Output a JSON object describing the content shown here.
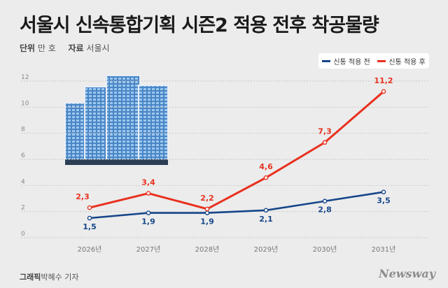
{
  "title": "서울시 신속통합기획 시즌2 적용 전후 착공물량",
  "meta": {
    "unit_label": "단위",
    "unit_value": "만 호",
    "source_label": "자료",
    "source_value": "서울시"
  },
  "footer": {
    "credit_label": "그래픽",
    "credit_name": "박혜수 기자",
    "brand": "Newsway"
  },
  "colors": {
    "before": "#16468a",
    "after": "#e8311f",
    "grid": "#c9c9c9"
  },
  "chart_data": {
    "type": "line",
    "categories": [
      "2026년",
      "2027년",
      "2028년",
      "2029년",
      "2030년",
      "2031년"
    ],
    "series": [
      {
        "name": "신통 적용 전",
        "values": [
          1.5,
          1.9,
          1.9,
          2.1,
          2.8,
          3.5
        ]
      },
      {
        "name": "신통 적용 후",
        "values": [
          2.3,
          3.4,
          2.2,
          4.6,
          7.3,
          11.2
        ]
      }
    ],
    "value_labels": {
      "before": [
        "1,5",
        "1,9",
        "1,9",
        "2,1",
        "2,8",
        "3,5"
      ],
      "after": [
        "2,3",
        "3,4",
        "2,2",
        "4,6",
        "7,3",
        "11,2"
      ]
    },
    "ylim": [
      0,
      12
    ],
    "yticks": [
      0,
      2,
      4,
      6,
      8,
      10,
      12
    ],
    "grid": true,
    "legend_position": "top-right"
  }
}
